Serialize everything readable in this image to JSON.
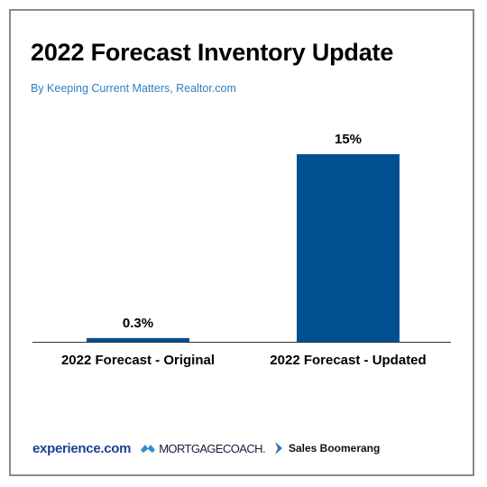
{
  "title": "2022 Forecast Inventory Update",
  "subtitle": "By Keeping Current Matters, Realtor.com",
  "colors": {
    "bar": "#004f91",
    "subtitle": "#2f7fc0",
    "border": "#8a8a8a",
    "baseline": "#333333"
  },
  "chart_data": {
    "type": "bar",
    "categories": [
      "2022 Forecast - Original",
      "2022 Forecast - Updated"
    ],
    "values": [
      0.3,
      15
    ],
    "data_labels": [
      "0.3%",
      "15%"
    ],
    "title": "2022 Forecast Inventory Update",
    "xlabel": "",
    "ylabel": "",
    "ylim": [
      0,
      15
    ],
    "grid": false,
    "legend": "none"
  },
  "footer": {
    "logos": [
      {
        "text": "experience.com",
        "icon": ""
      },
      {
        "text": "MORTGAGECOACH.",
        "icon": "mortgagecoach-logo-icon"
      },
      {
        "text": "Sales Boomerang",
        "icon": "boomerang-chevron-icon"
      }
    ]
  }
}
